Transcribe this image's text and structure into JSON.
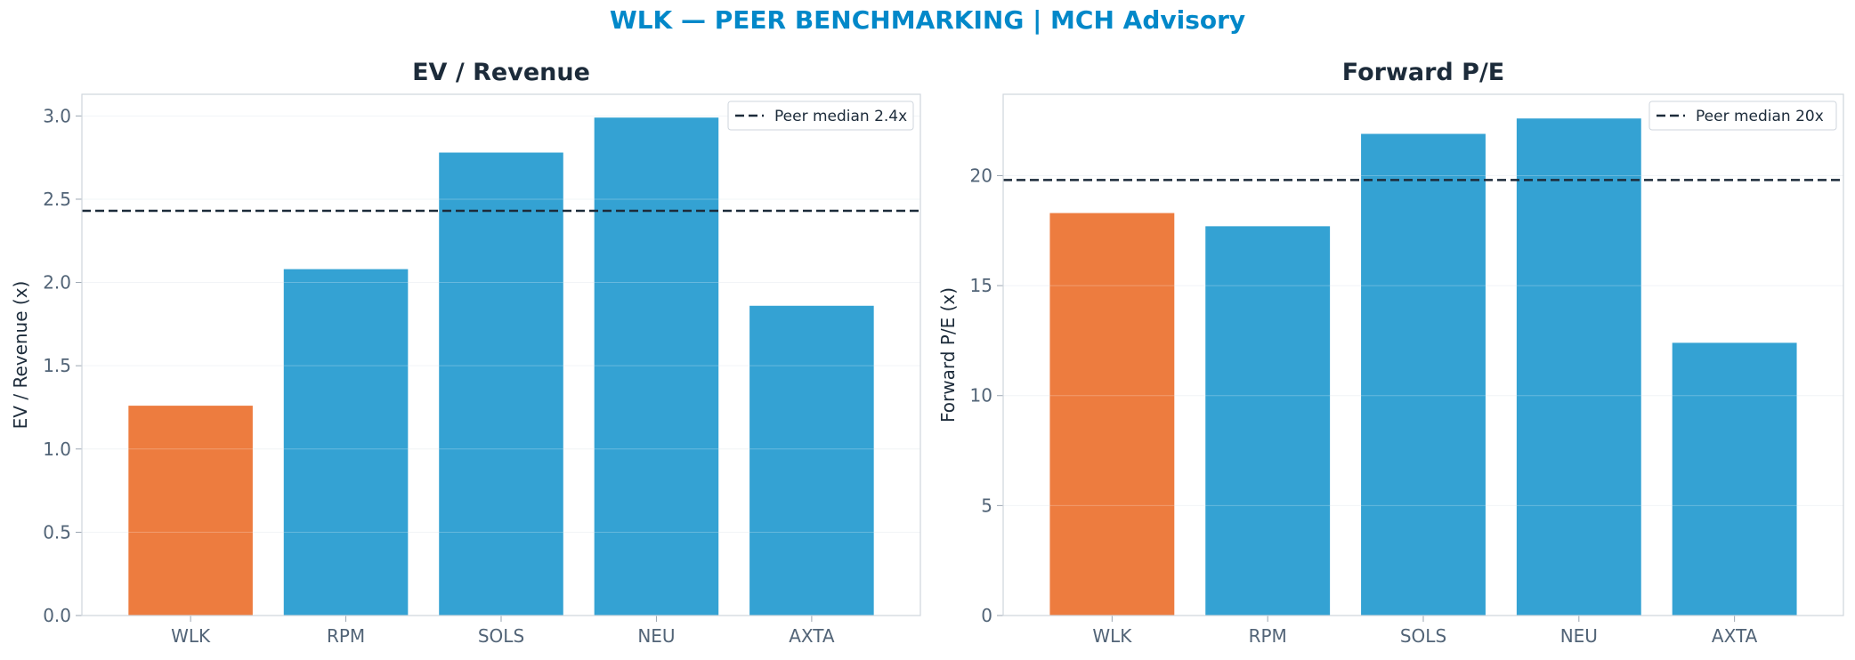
{
  "suptitle": "WLK — PEER BENCHMARKING | MCH Advisory",
  "colors": {
    "highlight": "#ED7C3F",
    "peer": "#34A2D3",
    "median_line": "#1c2b3a",
    "title": "#0288c9"
  },
  "chart_data": [
    {
      "type": "bar",
      "title": "EV / Revenue",
      "ylabel": "EV / Revenue (x)",
      "categories": [
        "WLK",
        "RPM",
        "SOLS",
        "NEU",
        "AXTA"
      ],
      "values": [
        1.26,
        2.08,
        2.78,
        2.99,
        1.86
      ],
      "highlight": [
        "WLK"
      ],
      "ylim": [
        0,
        3.13
      ],
      "yticks": [
        "0.0",
        "0.5",
        "1.0",
        "1.5",
        "2.0",
        "2.5",
        "3.0"
      ],
      "reference_line": {
        "value": 2.43,
        "label": "Peer median 2.4x",
        "style": "dashed"
      },
      "legend_position": "top-right",
      "grid": "horizontal"
    },
    {
      "type": "bar",
      "title": "Forward P/E",
      "ylabel": "Forward P/E (x)",
      "categories": [
        "WLK",
        "RPM",
        "SOLS",
        "NEU",
        "AXTA"
      ],
      "values": [
        18.3,
        17.7,
        21.9,
        22.6,
        12.4
      ],
      "highlight": [
        "WLK"
      ],
      "ylim": [
        0,
        23.7
      ],
      "yticks": [
        "0",
        "5",
        "10",
        "15",
        "20"
      ],
      "reference_line": {
        "value": 19.8,
        "label": "Peer median 20x",
        "style": "dashed"
      },
      "legend_position": "top-right",
      "grid": "horizontal"
    }
  ]
}
